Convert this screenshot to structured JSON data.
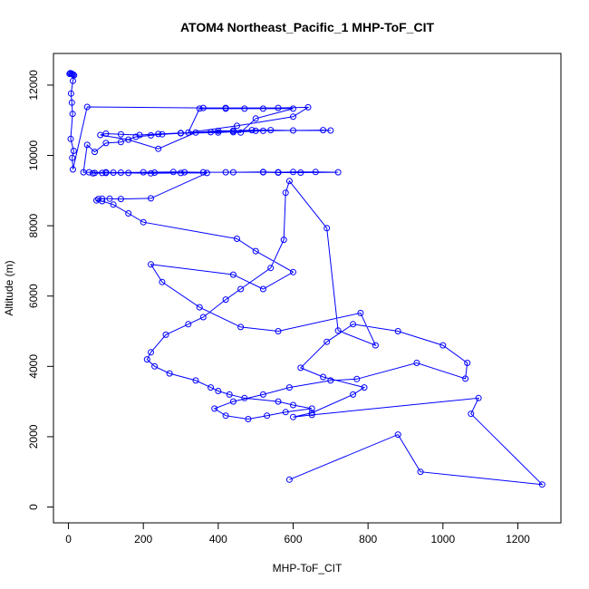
{
  "chart_data": {
    "type": "line",
    "title": "ATOM4 Northeast_Pacific_1 MHP-ToF_CIT",
    "xlabel": "MHP-ToF_CIT",
    "ylabel": "Altitude (m)",
    "xlim": [
      -40,
      1315
    ],
    "ylim": [
      -450,
      12900
    ],
    "xticks": [
      0,
      200,
      400,
      600,
      800,
      1000,
      1200
    ],
    "yticks": [
      0,
      2000,
      4000,
      6000,
      8000,
      10000,
      12000
    ],
    "xtick_labels": [
      "0",
      "200",
      "400",
      "600",
      "800",
      "1000",
      "1200"
    ],
    "ytick_labels": [
      "0",
      "2000",
      "4000",
      "6000",
      "8000",
      "10000",
      "12000"
    ],
    "series_color": "#0000ff",
    "markers": "open-circle",
    "grid": false,
    "legend": "none",
    "x": [
      3,
      5,
      8,
      10,
      13,
      15,
      12,
      7,
      9,
      11,
      6,
      14,
      10,
      12,
      50,
      360,
      420,
      560,
      640,
      600,
      450,
      320,
      350,
      420,
      470,
      520,
      600,
      500,
      460,
      440,
      520,
      440,
      380,
      300,
      240,
      190,
      140,
      100,
      85,
      160,
      240,
      340,
      400,
      440,
      490,
      540,
      600,
      700,
      680,
      500,
      400,
      300,
      250,
      220,
      180,
      140,
      100,
      70,
      50,
      40,
      55,
      120,
      200,
      280,
      360,
      440,
      520,
      560,
      600,
      660,
      720,
      620,
      560,
      520,
      420,
      310,
      230,
      140,
      100,
      90,
      70,
      65,
      100,
      160,
      220,
      300,
      370,
      220,
      140,
      110,
      90,
      80,
      75,
      90,
      120,
      160,
      200,
      450,
      500,
      600,
      520,
      440,
      220,
      250,
      350,
      460,
      560,
      780,
      820,
      720,
      690,
      590,
      580,
      575,
      540,
      460,
      420,
      360,
      320,
      260,
      220,
      210,
      230,
      270,
      340,
      380,
      400,
      430,
      470,
      560,
      600,
      650,
      580,
      530,
      480,
      420,
      390,
      440,
      520,
      590,
      700,
      770,
      930,
      1060,
      1065,
      1000,
      880,
      760,
      690,
      620,
      680,
      790,
      760,
      650,
      600,
      650,
      1095,
      1075,
      1265,
      940,
      880,
      590
    ],
    "y": [
      12320,
      12340,
      12330,
      12310,
      12300,
      12280,
      12120,
      11760,
      11500,
      11180,
      10470,
      10130,
      9930,
      9600,
      11380,
      11350,
      11350,
      11350,
      11370,
      11100,
      10840,
      10650,
      11330,
      11330,
      11330,
      11330,
      11330,
      11050,
      10650,
      10660,
      10700,
      10700,
      10660,
      10640,
      10610,
      10580,
      10600,
      10620,
      10580,
      10450,
      10190,
      10650,
      10700,
      10700,
      10720,
      10720,
      10710,
      10710,
      10720,
      10700,
      10650,
      10630,
      10600,
      10570,
      10530,
      10380,
      10350,
      10100,
      10300,
      9520,
      9520,
      9510,
      9520,
      9530,
      9520,
      9520,
      9530,
      9520,
      9530,
      9530,
      9520,
      9510,
      9510,
      9520,
      9520,
      9520,
      9510,
      9510,
      9520,
      9500,
      9500,
      9490,
      9500,
      9500,
      9490,
      9500,
      9500,
      8780,
      8760,
      8770,
      8770,
      8760,
      8720,
      8700,
      8600,
      8350,
      8100,
      7630,
      7280,
      6680,
      6200,
      6610,
      6900,
      6400,
      5680,
      5120,
      5000,
      5520,
      4600,
      5020,
      7930,
      9270,
      8940,
      7600,
      6800,
      6200,
      5900,
      5400,
      5200,
      4900,
      4400,
      4200,
      4000,
      3800,
      3600,
      3400,
      3300,
      3200,
      3100,
      3000,
      2900,
      2800,
      2700,
      2600,
      2500,
      2600,
      2800,
      3000,
      3200,
      3400,
      3600,
      3640,
      4100,
      3650,
      4100,
      4600,
      5000,
      5200,
      4700,
      3960,
      3700,
      3400,
      3200,
      2680,
      2560,
      2620,
      3100,
      2650,
      640,
      1000,
      2060,
      780
    ]
  }
}
